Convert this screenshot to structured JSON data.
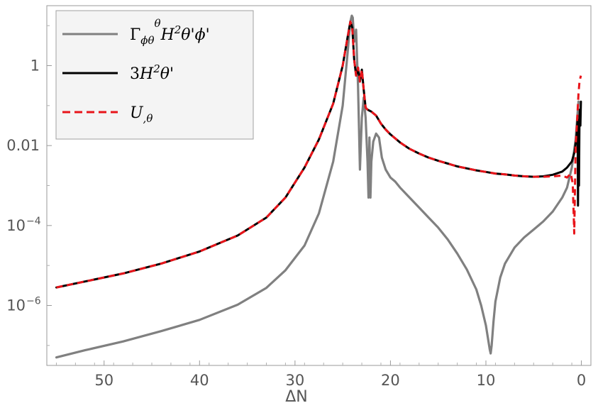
{
  "chart_data": {
    "type": "line",
    "title": "",
    "xlabel": "ΔN",
    "ylabel": "",
    "x_reversed": true,
    "xlim": [
      56,
      -1
    ],
    "ylim_log10": [
      -7.5,
      1.5
    ],
    "yscale": "log",
    "x_ticks": [
      50,
      40,
      30,
      20,
      10,
      0
    ],
    "y_ticks": [
      {
        "exp": 0,
        "base": "1",
        "sup": ""
      },
      {
        "exp": -2,
        "base": "0.01",
        "sup": ""
      },
      {
        "exp": -4,
        "base": "10",
        "sup": "−4"
      },
      {
        "exp": -6,
        "base": "10",
        "sup": "−6"
      }
    ],
    "grid": false,
    "legend_position": "top-left",
    "series": [
      {
        "key": "gamma",
        "color": "#808080",
        "dash": "solid",
        "legend": {
          "main1": "Γ",
          "sub1": "ϕθ",
          "sup1": "θ",
          "main2": "H",
          "sup2": "2",
          "main3": "θ'ϕ'"
        },
        "x": [
          55,
          52,
          48,
          44,
          40,
          36,
          33,
          31,
          29,
          27.5,
          26,
          25,
          24.5,
          24.2,
          24.05,
          23.95,
          23.8,
          23.6,
          23.5,
          23.4,
          23.3,
          23.2,
          23.0,
          22.8,
          22.6,
          22.4,
          22.3,
          22.2,
          22.1,
          22.0,
          21.8,
          21.5,
          21.2,
          20.9,
          20.5,
          20.0,
          19.5,
          19.0,
          18.0,
          17.0,
          16.0,
          15.0,
          14.0,
          13.0,
          12.0,
          11.0,
          10.5,
          10.0,
          9.8,
          9.6,
          9.5,
          9.4,
          9.2,
          9.0,
          8.5,
          8.0,
          7.0,
          6.0,
          5.0,
          4.0,
          3.0,
          2.0,
          1.5,
          1.0,
          0.6,
          0.4,
          0.3
        ],
        "y_log10": [
          -7.3,
          -7.12,
          -6.9,
          -6.64,
          -6.36,
          -5.98,
          -5.56,
          -5.12,
          -4.5,
          -3.7,
          -2.4,
          -1.0,
          0.3,
          1.1,
          1.25,
          1.2,
          0.6,
          0.9,
          0.2,
          -0.5,
          -1.5,
          -2.6,
          -1.3,
          -0.8,
          -1.3,
          -2.4,
          -3.3,
          -1.8,
          -3.3,
          -2.4,
          -1.9,
          -1.7,
          -1.8,
          -2.3,
          -2.6,
          -2.8,
          -2.9,
          -3.05,
          -3.3,
          -3.55,
          -3.8,
          -4.05,
          -4.35,
          -4.7,
          -5.1,
          -5.6,
          -6.0,
          -6.5,
          -6.8,
          -7.1,
          -7.2,
          -7.0,
          -6.4,
          -5.9,
          -5.3,
          -4.95,
          -4.55,
          -4.3,
          -4.1,
          -3.9,
          -3.65,
          -3.3,
          -3.05,
          -2.55,
          -1.85,
          -1.2,
          -0.9
        ]
      },
      {
        "key": "three",
        "color": "#000000",
        "dash": "solid",
        "legend": {
          "main1": "3",
          "main2": "H",
          "sup2": "2",
          "main3": "θ'"
        },
        "x": [
          55,
          52,
          48,
          44,
          40,
          36,
          33,
          31,
          29,
          27.5,
          26,
          25,
          24.5,
          24.2,
          24.0,
          23.8,
          23.6,
          23.4,
          23.2,
          23.0,
          22.8,
          22.6,
          22.4,
          22.0,
          21.5,
          21.0,
          20.5,
          20.0,
          19.0,
          18.0,
          17.0,
          16.0,
          15.0,
          14.0,
          13.0,
          12.0,
          11.0,
          10.0,
          9.0,
          8.0,
          7.0,
          6.0,
          5.0,
          4.0,
          3.0,
          2.0,
          1.5,
          1.0,
          0.7,
          0.5,
          0.4,
          0.35,
          0.3,
          0.25,
          0.2,
          0.15,
          0.1,
          0.05
        ],
        "y_log10": [
          -5.55,
          -5.4,
          -5.2,
          -4.95,
          -4.65,
          -4.25,
          -3.8,
          -3.3,
          -2.55,
          -1.85,
          -0.95,
          0.0,
          0.7,
          1.1,
          0.95,
          0.15,
          -0.25,
          -0.05,
          -0.4,
          -0.1,
          -0.6,
          -1.05,
          -1.1,
          -1.15,
          -1.25,
          -1.45,
          -1.6,
          -1.72,
          -1.92,
          -2.08,
          -2.2,
          -2.3,
          -2.38,
          -2.45,
          -2.52,
          -2.57,
          -2.62,
          -2.66,
          -2.7,
          -2.72,
          -2.75,
          -2.77,
          -2.78,
          -2.77,
          -2.73,
          -2.65,
          -2.55,
          -2.4,
          -2.15,
          -1.75,
          -1.35,
          -3.5,
          -1.5,
          -3.0,
          -1.3,
          -1.1,
          -1.5,
          -0.9
        ]
      },
      {
        "key": "u",
        "color": "#e8141a",
        "dash": "dashed",
        "legend": {
          "main1": "U",
          "sub1": ",θ"
        },
        "x": [
          55,
          52,
          48,
          44,
          40,
          36,
          33,
          31,
          29,
          27.5,
          26,
          25,
          24.5,
          24.2,
          24.0,
          23.8,
          23.6,
          23.4,
          23.2,
          23.0,
          22.8,
          22.6,
          22.4,
          22.0,
          21.5,
          21.0,
          20.5,
          20.0,
          19.0,
          18.0,
          17.0,
          16.0,
          15.0,
          14.0,
          13.0,
          12.0,
          11.0,
          10.0,
          9.0,
          8.0,
          7.0,
          6.0,
          5.0,
          4.0,
          3.0,
          2.0,
          1.5,
          1.1,
          0.9,
          0.75,
          0.6,
          0.45,
          0.3,
          0.2,
          0.1,
          0.05
        ],
        "y_log10": [
          -5.55,
          -5.4,
          -5.2,
          -4.95,
          -4.65,
          -4.25,
          -3.8,
          -3.3,
          -2.55,
          -1.85,
          -0.95,
          0.0,
          0.7,
          1.1,
          0.95,
          0.15,
          -0.25,
          -0.05,
          -0.4,
          -0.1,
          -0.6,
          -1.05,
          -1.1,
          -1.15,
          -1.25,
          -1.45,
          -1.6,
          -1.72,
          -1.92,
          -2.08,
          -2.2,
          -2.3,
          -2.38,
          -2.45,
          -2.52,
          -2.57,
          -2.62,
          -2.66,
          -2.7,
          -2.72,
          -2.75,
          -2.77,
          -2.78,
          -2.78,
          -2.77,
          -2.75,
          -2.8,
          -2.7,
          -2.95,
          -4.2,
          -2.0,
          -1.4,
          -0.7,
          -0.4,
          -0.3,
          -0.25
        ]
      }
    ]
  }
}
